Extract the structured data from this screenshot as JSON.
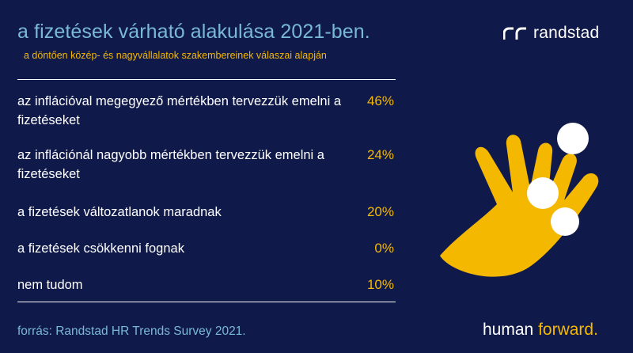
{
  "header": {
    "title": "a fizetések várható alakulása 2021-ben.",
    "subtitle": "a döntően közép- és nagyvállalatok szakembereinek válaszai alapján"
  },
  "brand": {
    "logo_icon": "randstad-logo-icon",
    "logo_text": "randstad",
    "tagline_word1": "human",
    "tagline_word2": "forward."
  },
  "source": "forrás: Randstad HR Trends Survey 2021.",
  "colors": {
    "background": "#101a4a",
    "accent_yellow": "#f5b800",
    "title_blue": "#7ab8d8",
    "text_white": "#ffffff"
  },
  "chart_data": {
    "type": "table",
    "rows": [
      {
        "label": "az inflációval megegyező mértékben tervezzük emelni a fizetéseket",
        "value": 46,
        "value_label": "46%"
      },
      {
        "label": "az inflációnál nagyobb mértékben tervezzük emelni a fizetéseket",
        "value": 24,
        "value_label": "24%"
      },
      {
        "label": "a fizetések változatlanok maradnak",
        "value": 20,
        "value_label": "20%"
      },
      {
        "label": "a fizetések csökkenni fognak",
        "value": 0,
        "value_label": "0%"
      },
      {
        "label": "nem tudom",
        "value": 10,
        "value_label": "10%"
      }
    ]
  }
}
